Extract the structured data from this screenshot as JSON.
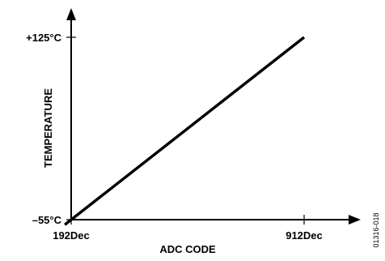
{
  "chart_data": {
    "type": "line",
    "title": "",
    "xlabel": "ADC CODE",
    "ylabel": "TEMPERATURE",
    "x_ticks": [
      "192Dec",
      "912Dec"
    ],
    "y_ticks": [
      "+125°C",
      "–55°C"
    ],
    "series": [
      {
        "x": [
          192,
          912
        ],
        "y": [
          -55,
          125
        ]
      }
    ],
    "xlim": [
      192,
      912
    ],
    "ylim": [
      -55,
      125
    ],
    "grid": false,
    "line_color": "#000000",
    "figure_id": "01316-018"
  }
}
